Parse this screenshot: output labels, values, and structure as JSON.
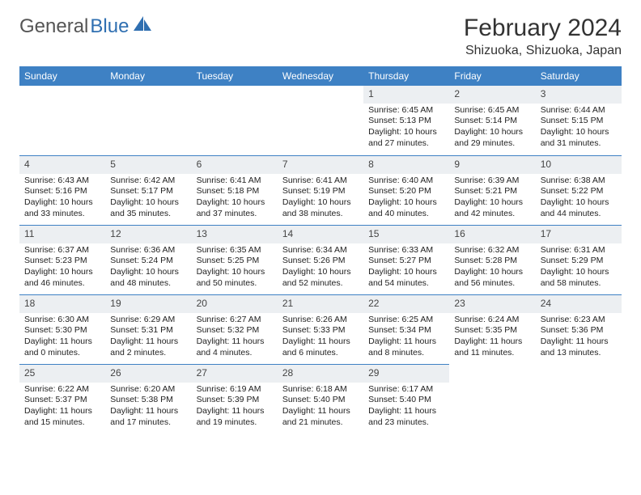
{
  "logo": {
    "word1": "General",
    "word2": "Blue"
  },
  "title": "February 2024",
  "location": "Shizuoka, Shizuoka, Japan",
  "colors": {
    "header_bg": "#3e81c4",
    "header_text": "#ffffff",
    "daybar_bg": "#eceff2",
    "daybar_border": "#3e81c4",
    "body_bg": "#ffffff",
    "text": "#333333",
    "logo_gray": "#555555",
    "logo_blue": "#2f6fb1"
  },
  "weekdays": [
    "Sunday",
    "Monday",
    "Tuesday",
    "Wednesday",
    "Thursday",
    "Friday",
    "Saturday"
  ],
  "weeks": [
    [
      null,
      null,
      null,
      null,
      {
        "n": "1",
        "sr": "6:45 AM",
        "ss": "5:13 PM",
        "dl": "10 hours and 27 minutes."
      },
      {
        "n": "2",
        "sr": "6:45 AM",
        "ss": "5:14 PM",
        "dl": "10 hours and 29 minutes."
      },
      {
        "n": "3",
        "sr": "6:44 AM",
        "ss": "5:15 PM",
        "dl": "10 hours and 31 minutes."
      }
    ],
    [
      {
        "n": "4",
        "sr": "6:43 AM",
        "ss": "5:16 PM",
        "dl": "10 hours and 33 minutes."
      },
      {
        "n": "5",
        "sr": "6:42 AM",
        "ss": "5:17 PM",
        "dl": "10 hours and 35 minutes."
      },
      {
        "n": "6",
        "sr": "6:41 AM",
        "ss": "5:18 PM",
        "dl": "10 hours and 37 minutes."
      },
      {
        "n": "7",
        "sr": "6:41 AM",
        "ss": "5:19 PM",
        "dl": "10 hours and 38 minutes."
      },
      {
        "n": "8",
        "sr": "6:40 AM",
        "ss": "5:20 PM",
        "dl": "10 hours and 40 minutes."
      },
      {
        "n": "9",
        "sr": "6:39 AM",
        "ss": "5:21 PM",
        "dl": "10 hours and 42 minutes."
      },
      {
        "n": "10",
        "sr": "6:38 AM",
        "ss": "5:22 PM",
        "dl": "10 hours and 44 minutes."
      }
    ],
    [
      {
        "n": "11",
        "sr": "6:37 AM",
        "ss": "5:23 PM",
        "dl": "10 hours and 46 minutes."
      },
      {
        "n": "12",
        "sr": "6:36 AM",
        "ss": "5:24 PM",
        "dl": "10 hours and 48 minutes."
      },
      {
        "n": "13",
        "sr": "6:35 AM",
        "ss": "5:25 PM",
        "dl": "10 hours and 50 minutes."
      },
      {
        "n": "14",
        "sr": "6:34 AM",
        "ss": "5:26 PM",
        "dl": "10 hours and 52 minutes."
      },
      {
        "n": "15",
        "sr": "6:33 AM",
        "ss": "5:27 PM",
        "dl": "10 hours and 54 minutes."
      },
      {
        "n": "16",
        "sr": "6:32 AM",
        "ss": "5:28 PM",
        "dl": "10 hours and 56 minutes."
      },
      {
        "n": "17",
        "sr": "6:31 AM",
        "ss": "5:29 PM",
        "dl": "10 hours and 58 minutes."
      }
    ],
    [
      {
        "n": "18",
        "sr": "6:30 AM",
        "ss": "5:30 PM",
        "dl": "11 hours and 0 minutes."
      },
      {
        "n": "19",
        "sr": "6:29 AM",
        "ss": "5:31 PM",
        "dl": "11 hours and 2 minutes."
      },
      {
        "n": "20",
        "sr": "6:27 AM",
        "ss": "5:32 PM",
        "dl": "11 hours and 4 minutes."
      },
      {
        "n": "21",
        "sr": "6:26 AM",
        "ss": "5:33 PM",
        "dl": "11 hours and 6 minutes."
      },
      {
        "n": "22",
        "sr": "6:25 AM",
        "ss": "5:34 PM",
        "dl": "11 hours and 8 minutes."
      },
      {
        "n": "23",
        "sr": "6:24 AM",
        "ss": "5:35 PM",
        "dl": "11 hours and 11 minutes."
      },
      {
        "n": "24",
        "sr": "6:23 AM",
        "ss": "5:36 PM",
        "dl": "11 hours and 13 minutes."
      }
    ],
    [
      {
        "n": "25",
        "sr": "6:22 AM",
        "ss": "5:37 PM",
        "dl": "11 hours and 15 minutes."
      },
      {
        "n": "26",
        "sr": "6:20 AM",
        "ss": "5:38 PM",
        "dl": "11 hours and 17 minutes."
      },
      {
        "n": "27",
        "sr": "6:19 AM",
        "ss": "5:39 PM",
        "dl": "11 hours and 19 minutes."
      },
      {
        "n": "28",
        "sr": "6:18 AM",
        "ss": "5:40 PM",
        "dl": "11 hours and 21 minutes."
      },
      {
        "n": "29",
        "sr": "6:17 AM",
        "ss": "5:40 PM",
        "dl": "11 hours and 23 minutes."
      },
      null,
      null
    ]
  ],
  "labels": {
    "sunrise": "Sunrise:",
    "sunset": "Sunset:",
    "daylight": "Daylight:"
  }
}
